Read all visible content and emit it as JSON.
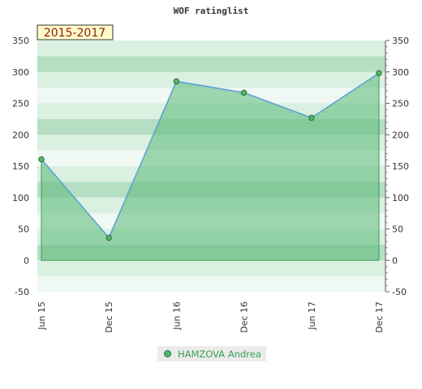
{
  "chart_data": {
    "type": "area",
    "title": "WOF ratinglist",
    "badge": "2015-2017",
    "categories": [
      "Jun 15",
      "Dec 15",
      "Jun 16",
      "Dec 16",
      "Jun 17",
      "Dec 17"
    ],
    "series": [
      {
        "name": "HAMZOVA Andrea",
        "values": [
          161,
          36,
          285,
          267,
          227,
          298
        ]
      }
    ],
    "ylim": [
      -50,
      350
    ],
    "yticks": [
      -50,
      0,
      50,
      100,
      150,
      200,
      250,
      300,
      350
    ],
    "ytick_labels": [
      "-50",
      "0",
      "50",
      "100",
      "150",
      "200",
      "250",
      "300",
      "350"
    ],
    "xlabel": "",
    "ylabel": "",
    "legend_position": "bottom",
    "grid": true,
    "colors": {
      "line": "#5aa0d6",
      "area": "#5ab879",
      "marker": "#52b76a",
      "marker_edge": "#2f6b3d",
      "band_dark": "#b5dec3",
      "band_light": "#daf0e1",
      "band_lightest": "#eff8f2",
      "badge_bg": "#fffbc8",
      "badge_text": "#8b1a1a"
    }
  }
}
